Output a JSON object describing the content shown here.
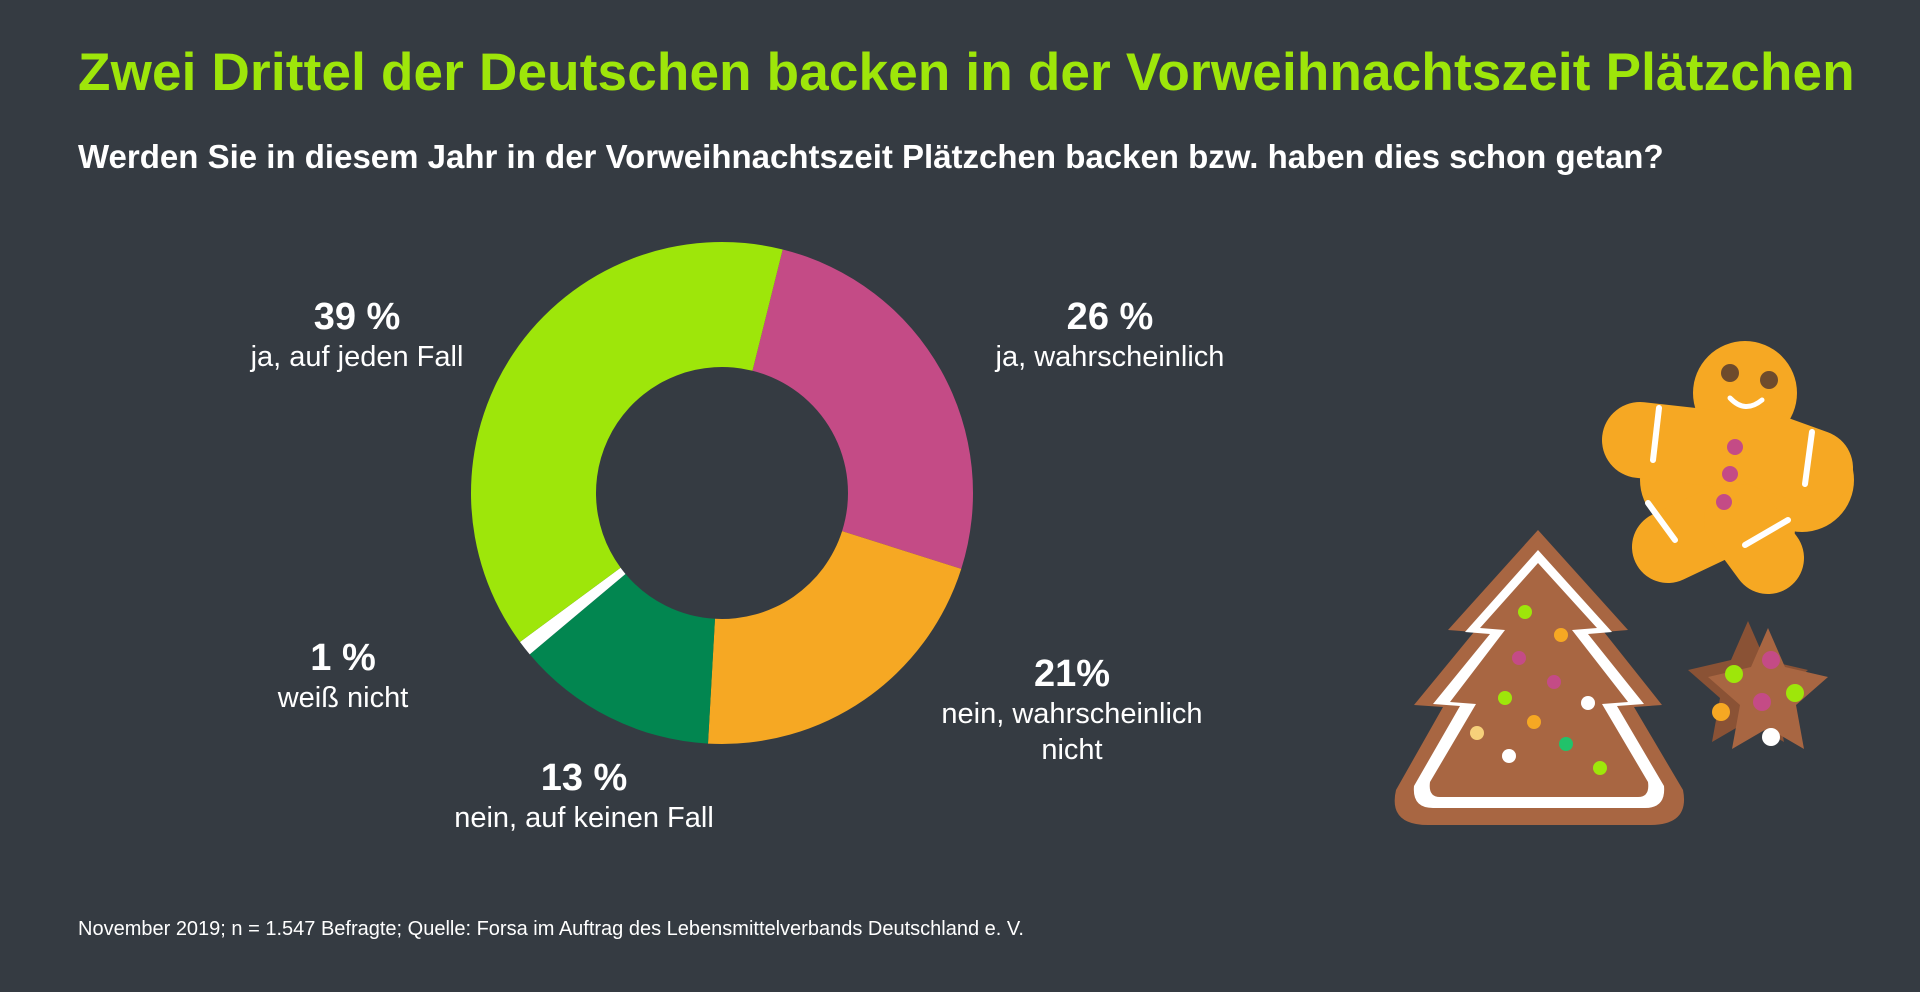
{
  "header": {
    "title": "Zwei Drittel der Deutschen backen in der Vorweihnachtszeit Plätzchen",
    "subtitle": "Werden Sie in diesem Jahr in der Vorweihnachtszeit Plätzchen backen bzw. haben dies schon getan?"
  },
  "chart_data": {
    "type": "pie",
    "donut": true,
    "title": "Zwei Drittel der Deutschen backen in der Vorweihnachtszeit Plätzchen",
    "subtitle": "Werden Sie in diesem Jahr in der Vorweihnachtszeit Plätzchen backen bzw. haben dies schon getan?",
    "slices": [
      {
        "label": "ja, wahrscheinlich",
        "value": 26,
        "display": "26 %",
        "color": "#c44b86"
      },
      {
        "label": "nein, wahrscheinlich nicht",
        "value": 21,
        "display": "21%",
        "color": "#f6a823"
      },
      {
        "label": "nein, auf keinen Fall",
        "value": 13,
        "display": "13 %",
        "color": "#028650"
      },
      {
        "label": "weiß nicht",
        "value": 1,
        "display": "1 %",
        "color": "#ffffff"
      },
      {
        "label": "ja, auf jeden Fall",
        "value": 39,
        "display": "39 %",
        "color": "#9ee60a"
      }
    ]
  },
  "labels": {
    "yes_definitely": {
      "pct": "39 %",
      "text": "ja, auf jeden Fall"
    },
    "yes_probably": {
      "pct": "26 %",
      "text": "ja, wahrscheinlich"
    },
    "no_probably_line1": "nein, wahrscheinlich",
    "no_probably_line2": "nicht",
    "no_probably_pct": "21%",
    "no_never": {
      "pct": "13 %",
      "text": "nein, auf keinen Fall"
    },
    "dont_know": {
      "pct": "1 %",
      "text": "weiß nicht"
    }
  },
  "footnote": "November 2019; n = 1.547 Befragte;  Quelle: Forsa im Auftrag des Lebensmittelverbands Deutschland e. V.",
  "illustration": {
    "icons": [
      "gingerbread-man-icon",
      "christmas-tree-cookie-icon",
      "star-cookie-icon"
    ],
    "colors": {
      "cookie": "#f6a823",
      "gingerbread": "#a86642",
      "icing": "#ffffff"
    }
  }
}
